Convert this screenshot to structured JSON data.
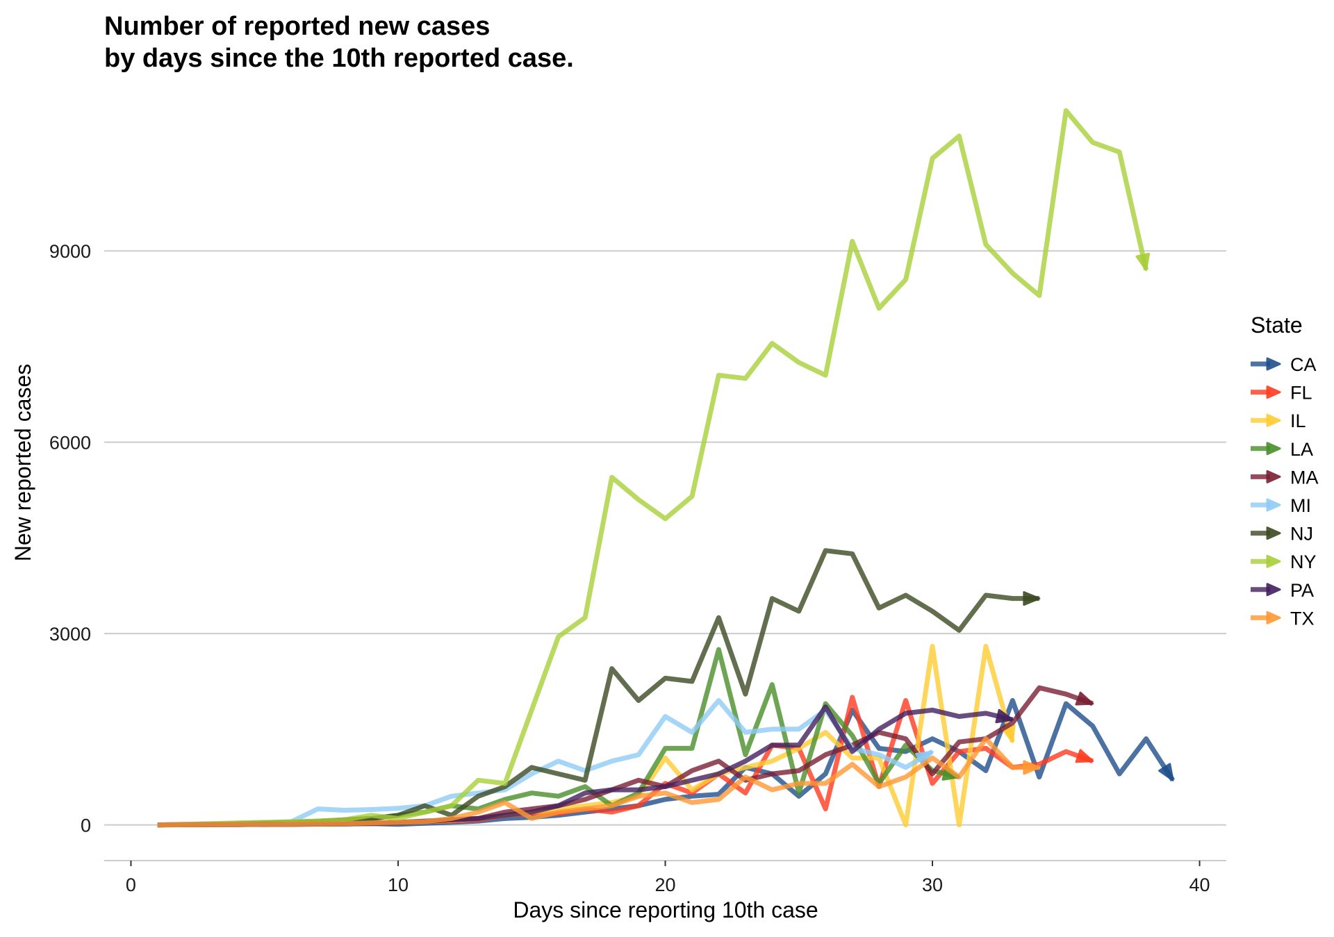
{
  "chart_data": {
    "type": "line",
    "title_line1": "Number of reported new cases",
    "title_line2": "by days since the 10th reported case.",
    "xlabel": "Days since reporting 10th case",
    "ylabel": "New reported cases",
    "xlim": [
      -1,
      41
    ],
    "ylim": [
      -560,
      11300
    ],
    "x_ticks": [
      0,
      10,
      20,
      30,
      40
    ],
    "y_ticks": [
      0,
      3000,
      6000,
      9000
    ],
    "grid": "horizontal major",
    "legend_title": "State",
    "legend_position": "right",
    "series": [
      {
        "name": "CA",
        "color": "#1f4e8c",
        "x": [
          1,
          2,
          3,
          4,
          5,
          6,
          7,
          8,
          9,
          10,
          11,
          12,
          13,
          14,
          15,
          16,
          17,
          18,
          19,
          20,
          21,
          22,
          23,
          24,
          25,
          26,
          27,
          28,
          29,
          30,
          31,
          32,
          33,
          34,
          35,
          36,
          37,
          38,
          39
        ],
        "y": [
          0,
          5,
          8,
          10,
          5,
          10,
          12,
          15,
          20,
          10,
          25,
          40,
          60,
          100,
          120,
          150,
          200,
          250,
          300,
          400,
          450,
          480,
          900,
          800,
          450,
          800,
          1800,
          1200,
          1150,
          1350,
          1150,
          850,
          1950,
          750,
          1900,
          1550,
          800,
          1350,
          700
        ]
      },
      {
        "name": "FL",
        "color": "#ff3b1f",
        "x": [
          1,
          2,
          3,
          4,
          5,
          6,
          7,
          8,
          9,
          10,
          11,
          12,
          13,
          14,
          15,
          16,
          17,
          18,
          19,
          20,
          21,
          22,
          23,
          24,
          25,
          26,
          27,
          28,
          29,
          30,
          31,
          32,
          33,
          34,
          35,
          36
        ],
        "y": [
          0,
          3,
          5,
          8,
          10,
          12,
          15,
          20,
          25,
          40,
          50,
          60,
          80,
          150,
          180,
          180,
          250,
          200,
          300,
          650,
          500,
          800,
          500,
          1250,
          1200,
          250,
          2000,
          600,
          1950,
          650,
          1150,
          1200,
          900,
          950,
          1150,
          1000
        ]
      },
      {
        "name": "IL",
        "color": "#ffcc33",
        "x": [
          1,
          2,
          3,
          4,
          5,
          6,
          7,
          8,
          9,
          10,
          11,
          12,
          13,
          14,
          15,
          16,
          17,
          18,
          19,
          20,
          21,
          22,
          23,
          24,
          25,
          26,
          27,
          28,
          29,
          30,
          31,
          32,
          33
        ],
        "y": [
          0,
          2,
          3,
          5,
          8,
          10,
          12,
          15,
          20,
          30,
          50,
          70,
          100,
          150,
          200,
          250,
          300,
          350,
          450,
          1050,
          550,
          800,
          900,
          1000,
          1200,
          1450,
          1050,
          1050,
          0,
          2800,
          0,
          2800,
          1300
        ]
      },
      {
        "name": "LA",
        "color": "#4a8f2a",
        "x": [
          1,
          2,
          3,
          4,
          5,
          6,
          7,
          8,
          9,
          10,
          11,
          12,
          13,
          14,
          15,
          16,
          17,
          18,
          19,
          20,
          21,
          22,
          23,
          24,
          25,
          26,
          27,
          28,
          29,
          30,
          31
        ],
        "y": [
          0,
          5,
          10,
          20,
          30,
          40,
          60,
          80,
          100,
          150,
          200,
          300,
          250,
          400,
          500,
          450,
          600,
          300,
          500,
          1200,
          1200,
          2750,
          1100,
          2200,
          500,
          1900,
          1400,
          650,
          1250,
          850,
          750
        ]
      },
      {
        "name": "MA",
        "color": "#7a1f33",
        "x": [
          1,
          2,
          3,
          4,
          5,
          6,
          7,
          8,
          9,
          10,
          11,
          12,
          13,
          14,
          15,
          16,
          17,
          18,
          19,
          20,
          21,
          22,
          23,
          24,
          25,
          26,
          27,
          28,
          29,
          30,
          31,
          32,
          33,
          34,
          35,
          36
        ],
        "y": [
          0,
          2,
          3,
          5,
          8,
          10,
          15,
          20,
          30,
          40,
          60,
          80,
          100,
          200,
          250,
          300,
          400,
          550,
          700,
          600,
          850,
          1000,
          700,
          800,
          850,
          1100,
          1250,
          1450,
          1350,
          800,
          1300,
          1350,
          1600,
          2150,
          2050,
          1900
        ]
      },
      {
        "name": "MI",
        "color": "#8ecbf5",
        "x": [
          1,
          2,
          3,
          4,
          5,
          6,
          7,
          8,
          9,
          10,
          11,
          12,
          13,
          14,
          15,
          16,
          17,
          18,
          19,
          20,
          21,
          22,
          23,
          24,
          25,
          26,
          27,
          28,
          29,
          30
        ],
        "y": [
          0,
          5,
          10,
          15,
          30,
          50,
          250,
          230,
          240,
          260,
          300,
          450,
          500,
          550,
          800,
          1000,
          850,
          1000,
          1100,
          1700,
          1450,
          1950,
          1450,
          1500,
          1500,
          1800,
          1200,
          1100,
          900,
          1150
        ]
      },
      {
        "name": "NJ",
        "color": "#3b4a22",
        "x": [
          1,
          2,
          3,
          4,
          5,
          6,
          7,
          8,
          9,
          10,
          11,
          12,
          13,
          14,
          15,
          16,
          17,
          18,
          19,
          20,
          21,
          22,
          23,
          24,
          25,
          26,
          27,
          28,
          29,
          30,
          31,
          32,
          33,
          34
        ],
        "y": [
          0,
          5,
          10,
          20,
          30,
          40,
          50,
          80,
          100,
          150,
          300,
          150,
          450,
          600,
          900,
          800,
          700,
          2450,
          1950,
          2300,
          2250,
          3250,
          2050,
          3550,
          3350,
          4300,
          4250,
          3400,
          3600,
          3350,
          3050,
          3600,
          3550,
          3550
        ]
      },
      {
        "name": "NY",
        "color": "#a8cf3a",
        "x": [
          1,
          2,
          3,
          4,
          5,
          6,
          7,
          8,
          9,
          10,
          11,
          12,
          13,
          14,
          15,
          16,
          17,
          18,
          19,
          20,
          21,
          22,
          23,
          24,
          25,
          26,
          27,
          28,
          29,
          30,
          31,
          32,
          33,
          34,
          35,
          36,
          37,
          38
        ],
        "y": [
          0,
          10,
          20,
          30,
          40,
          50,
          60,
          80,
          150,
          100,
          200,
          300,
          700,
          650,
          1800,
          2950,
          3250,
          5450,
          5100,
          4800,
          5150,
          7050,
          7000,
          7550,
          7250,
          7050,
          9150,
          8100,
          8550,
          10450,
          10800,
          9100,
          8650,
          8300,
          11200,
          10700,
          10550,
          8700
        ]
      },
      {
        "name": "PA",
        "color": "#43205f",
        "x": [
          1,
          2,
          3,
          4,
          5,
          6,
          7,
          8,
          9,
          10,
          11,
          12,
          13,
          14,
          15,
          16,
          17,
          18,
          19,
          20,
          21,
          22,
          23,
          24,
          25,
          26,
          27,
          28,
          29,
          30,
          31,
          32,
          33
        ],
        "y": [
          0,
          2,
          3,
          5,
          8,
          10,
          12,
          15,
          20,
          30,
          50,
          80,
          100,
          150,
          200,
          300,
          500,
          550,
          550,
          600,
          700,
          800,
          1000,
          1250,
          1250,
          1850,
          1150,
          1500,
          1750,
          1800,
          1700,
          1750,
          1650
        ]
      },
      {
        "name": "TX",
        "color": "#ff9933",
        "x": [
          1,
          2,
          3,
          4,
          5,
          6,
          7,
          8,
          9,
          10,
          11,
          12,
          13,
          14,
          15,
          16,
          17,
          18,
          19,
          20,
          21,
          22,
          23,
          24,
          25,
          26,
          27,
          28,
          29,
          30,
          31,
          32,
          33,
          34
        ],
        "y": [
          0,
          2,
          5,
          8,
          10,
          12,
          15,
          20,
          30,
          40,
          50,
          100,
          200,
          350,
          100,
          200,
          250,
          300,
          450,
          500,
          350,
          400,
          750,
          550,
          650,
          650,
          950,
          600,
          750,
          1050,
          750,
          1350,
          900,
          900
        ]
      }
    ]
  }
}
